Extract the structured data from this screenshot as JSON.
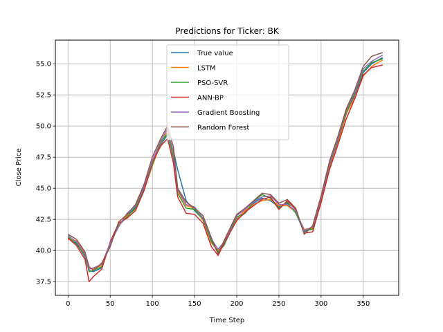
{
  "chart_data": {
    "type": "line",
    "title": "Predictions for Ticker: BK",
    "xlabel": "Time Step",
    "ylabel": "Close Price",
    "xlim": [
      -15,
      392
    ],
    "ylim": [
      36.4,
      56.9
    ],
    "xticks": [
      0,
      50,
      100,
      150,
      200,
      250,
      300,
      350
    ],
    "xtick_labels": [
      "0",
      "50",
      "100",
      "150",
      "200",
      "250",
      "300",
      "350"
    ],
    "yticks": [
      37.5,
      40.0,
      42.5,
      45.0,
      47.5,
      50.0,
      52.5,
      55.0
    ],
    "ytick_labels": [
      "37.5",
      "40.0",
      "42.5",
      "45.0",
      "47.5",
      "50.0",
      "52.5",
      "55.0"
    ],
    "grid": true,
    "legend_position": "top-center",
    "x": [
      0,
      10,
      20,
      25,
      30,
      40,
      50,
      60,
      70,
      80,
      90,
      100,
      110,
      118,
      125,
      130,
      140,
      150,
      160,
      170,
      178,
      185,
      200,
      210,
      220,
      230,
      240,
      250,
      260,
      270,
      280,
      290,
      300,
      310,
      320,
      330,
      340,
      350,
      360,
      373
    ],
    "series": [
      {
        "name": "True value",
        "color": "#1f77b4",
        "values": [
          41.0,
          40.6,
          39.5,
          38.4,
          38.3,
          38.6,
          40.6,
          42.0,
          42.8,
          43.5,
          45.0,
          47.0,
          48.5,
          49.3,
          48.0,
          46.5,
          44.0,
          43.2,
          42.5,
          40.8,
          39.8,
          40.5,
          42.5,
          43.0,
          43.8,
          44.2,
          44.0,
          43.5,
          43.8,
          43.0,
          41.5,
          41.8,
          44.0,
          46.8,
          48.8,
          51.0,
          52.5,
          54.3,
          55.0,
          55.5
        ]
      },
      {
        "name": "LSTM",
        "color": "#ff7f0e",
        "values": [
          40.9,
          40.8,
          39.8,
          38.6,
          38.5,
          38.8,
          40.4,
          42.1,
          42.8,
          43.3,
          44.8,
          46.8,
          48.6,
          49.6,
          47.6,
          44.8,
          43.6,
          43.4,
          42.4,
          40.6,
          40.0,
          40.5,
          42.6,
          43.2,
          43.7,
          44.0,
          44.1,
          43.6,
          43.6,
          43.1,
          41.7,
          41.8,
          43.8,
          46.6,
          48.6,
          51.0,
          52.3,
          54.0,
          54.8,
          55.3
        ]
      },
      {
        "name": "PSO-SVR",
        "color": "#2ca02c",
        "values": [
          41.1,
          40.5,
          39.6,
          38.3,
          38.4,
          38.7,
          40.5,
          42.0,
          42.7,
          43.4,
          44.9,
          46.9,
          48.7,
          49.4,
          47.4,
          44.6,
          43.4,
          43.3,
          42.5,
          40.7,
          39.9,
          40.4,
          42.7,
          43.0,
          43.9,
          44.5,
          44.2,
          43.4,
          43.9,
          43.0,
          41.6,
          41.7,
          44.1,
          46.9,
          48.9,
          51.1,
          52.6,
          54.4,
          55.1,
          55.4
        ]
      },
      {
        "name": "ANN-BP",
        "color": "#d62728",
        "values": [
          41.0,
          40.4,
          39.3,
          37.5,
          37.9,
          38.5,
          40.7,
          42.2,
          42.6,
          43.2,
          44.8,
          47.1,
          48.4,
          49.0,
          47.0,
          44.3,
          43.0,
          42.9,
          42.2,
          40.3,
          39.6,
          40.6,
          42.4,
          43.1,
          43.6,
          44.1,
          44.3,
          43.3,
          44.0,
          43.3,
          41.4,
          41.5,
          43.9,
          46.5,
          48.5,
          50.6,
          52.2,
          54.1,
          54.7,
          54.9
        ]
      },
      {
        "name": "Gradient Boosting",
        "color": "#9467bd",
        "values": [
          41.2,
          40.7,
          39.7,
          38.5,
          38.6,
          38.9,
          40.6,
          41.9,
          43.0,
          43.6,
          45.1,
          47.2,
          48.8,
          49.8,
          47.8,
          44.9,
          43.7,
          43.5,
          42.6,
          40.9,
          40.1,
          40.7,
          42.8,
          43.3,
          43.9,
          44.3,
          44.4,
          43.7,
          43.7,
          43.2,
          41.6,
          41.9,
          44.2,
          47.0,
          49.0,
          51.3,
          52.7,
          54.6,
          55.2,
          55.7
        ]
      },
      {
        "name": "Random Forest",
        "color": "#8c564b",
        "values": [
          41.3,
          40.9,
          39.9,
          38.7,
          38.4,
          39.0,
          40.3,
          42.3,
          42.9,
          43.7,
          45.3,
          47.5,
          49.0,
          50.0,
          48.3,
          45.0,
          43.9,
          43.4,
          42.8,
          41.0,
          39.7,
          40.8,
          42.9,
          43.4,
          44.0,
          44.6,
          44.5,
          43.8,
          44.1,
          43.4,
          41.3,
          42.0,
          44.4,
          47.2,
          49.2,
          51.4,
          52.9,
          54.8,
          55.6,
          55.9
        ]
      }
    ]
  }
}
